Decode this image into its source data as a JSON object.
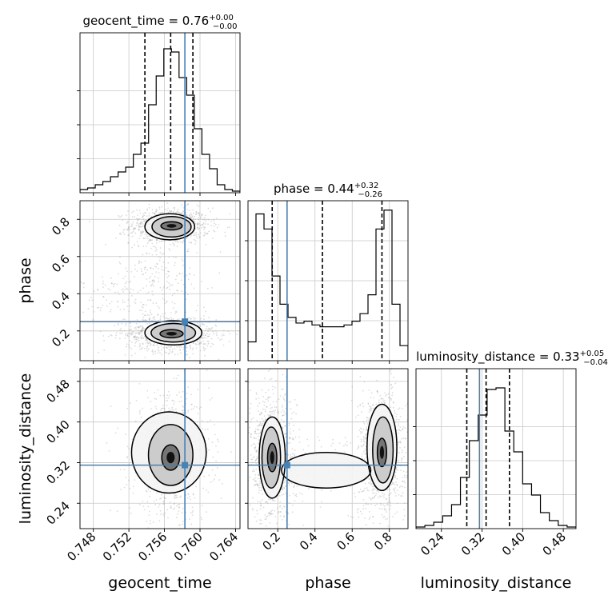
{
  "chart_data": {
    "type": "corner",
    "colors": {
      "truth": "#4682b4",
      "hist": "#000000",
      "quantile": "#000000",
      "grid": "#c8c8c8",
      "scatter": "#9a9a9a"
    },
    "parameters": [
      {
        "name": "geocent_time",
        "label": "geocent_time",
        "title_prefix": "geocent_time = 0.76",
        "title_upper": "+0.00",
        "title_lower": "−0.00",
        "range": [
          0.7465,
          0.7645
        ],
        "ticks": [
          0.748,
          0.752,
          0.756,
          0.76,
          0.764
        ],
        "tick_labels": [
          "0.748",
          "0.752",
          "0.756",
          "0.760",
          "0.764"
        ],
        "truth": 0.7583,
        "quantiles": [
          0.7538,
          0.7567,
          0.7592
        ],
        "hist": [
          0.02,
          0.03,
          0.05,
          0.07,
          0.1,
          0.13,
          0.16,
          0.24,
          0.31,
          0.55,
          0.73,
          0.9,
          0.88,
          0.72,
          0.61,
          0.4,
          0.24,
          0.15,
          0.05,
          0.02,
          0.01
        ],
        "hist_ylim": [
          0,
          1.0
        ]
      },
      {
        "name": "phase",
        "label": "phase",
        "title_prefix": "phase = 0.44",
        "title_upper": "+0.32",
        "title_lower": "−0.26",
        "range": [
          0.04,
          0.9
        ],
        "ticks": [
          0.2,
          0.4,
          0.6,
          0.8
        ],
        "tick_labels": [
          "0.2",
          "0.4",
          "0.6",
          "0.8"
        ],
        "truth": 0.25,
        "quantiles": [
          0.17,
          0.44,
          0.76
        ],
        "hist": [
          0.1,
          0.78,
          0.7,
          0.45,
          0.3,
          0.23,
          0.2,
          0.21,
          0.19,
          0.18,
          0.18,
          0.18,
          0.19,
          0.21,
          0.25,
          0.35,
          0.7,
          0.8,
          0.3,
          0.08
        ],
        "hist_ylim": [
          0,
          0.85
        ]
      },
      {
        "name": "luminosity_distance",
        "label": "luminosity_distance",
        "title_prefix": "luminosity_distance = 0.33",
        "title_upper": "+0.05",
        "title_lower": "−0.04",
        "range": [
          0.19,
          0.505
        ],
        "ticks": [
          0.24,
          0.32,
          0.4,
          0.48
        ],
        "tick_labels": [
          "0.24",
          "0.32",
          "0.40",
          "0.48"
        ],
        "truth": 0.315,
        "quantiles": [
          0.29,
          0.328,
          0.374
        ],
        "hist": [
          0.01,
          0.02,
          0.04,
          0.08,
          0.15,
          0.32,
          0.55,
          0.71,
          0.87,
          0.88,
          0.61,
          0.48,
          0.28,
          0.21,
          0.1,
          0.05,
          0.02,
          0.01
        ],
        "hist_ylim": [
          0,
          1.0
        ]
      }
    ],
    "pairs": [
      {
        "x": "geocent_time",
        "y": "phase",
        "truth": [
          0.7583,
          0.25
        ],
        "blobs": [
          {
            "cx": 0.7566,
            "cy": 0.765,
            "sx": 0.0014,
            "sy": 0.03,
            "w": 1.0
          },
          {
            "cx": 0.7568,
            "cy": 0.185,
            "sx": 0.0016,
            "sy": 0.03,
            "w": 1.05
          },
          {
            "cx": 0.753,
            "cy": 0.4,
            "sx": 0.002,
            "sy": 0.06,
            "w": 0.18
          },
          {
            "cx": 0.7552,
            "cy": 0.55,
            "sx": 0.0016,
            "sy": 0.08,
            "w": 0.15
          }
        ],
        "contours": [
          {
            "level": 0.39,
            "rings": [
              {
                "cx": 0.7568,
                "cy": 0.765,
                "rx": 0.0012,
                "ry": 0.022
              },
              {
                "cx": 0.7568,
                "cy": 0.185,
                "rx": 0.0013,
                "ry": 0.022
              }
            ]
          },
          {
            "level": 0.86,
            "rings": [
              {
                "cx": 0.7568,
                "cy": 0.76,
                "rx": 0.0022,
                "ry": 0.055
              },
              {
                "cx": 0.757,
                "cy": 0.19,
                "rx": 0.0025,
                "ry": 0.05
              }
            ]
          },
          {
            "level": 0.99,
            "rings": [
              {
                "cx": 0.7566,
                "cy": 0.76,
                "rx": 0.0028,
                "ry": 0.07
              },
              {
                "cx": 0.757,
                "cy": 0.19,
                "rx": 0.0032,
                "ry": 0.065
              }
            ]
          }
        ]
      },
      {
        "x": "geocent_time",
        "y": "luminosity_distance",
        "truth": [
          0.7583,
          0.315
        ],
        "blobs": [
          {
            "cx": 0.7567,
            "cy": 0.33,
            "sx": 0.0014,
            "sy": 0.038,
            "w": 1.0
          }
        ],
        "contours": [
          {
            "level": 0.39,
            "rings": [
              {
                "cx": 0.7567,
                "cy": 0.33,
                "rx": 0.001,
                "ry": 0.025
              }
            ]
          },
          {
            "level": 0.86,
            "rings": [
              {
                "cx": 0.7567,
                "cy": 0.335,
                "rx": 0.0025,
                "ry": 0.06
              }
            ]
          },
          {
            "level": 0.99,
            "rings": [
              {
                "cx": 0.7565,
                "cy": 0.34,
                "rx": 0.0042,
                "ry": 0.08
              }
            ]
          }
        ]
      },
      {
        "x": "phase",
        "y": "luminosity_distance",
        "truth": [
          0.25,
          0.315
        ],
        "blobs": [
          {
            "cx": 0.17,
            "cy": 0.33,
            "sx": 0.04,
            "sy": 0.04,
            "w": 1.0
          },
          {
            "cx": 0.76,
            "cy": 0.34,
            "sx": 0.04,
            "sy": 0.04,
            "w": 1.0
          },
          {
            "cx": 0.46,
            "cy": 0.31,
            "sx": 0.14,
            "sy": 0.025,
            "w": 0.15
          }
        ],
        "contours": [
          {
            "level": 0.39,
            "rings": [
              {
                "cx": 0.17,
                "cy": 0.33,
                "rx": 0.025,
                "ry": 0.028
              },
              {
                "cx": 0.76,
                "cy": 0.34,
                "rx": 0.025,
                "ry": 0.028
              }
            ]
          },
          {
            "level": 0.86,
            "rings": [
              {
                "cx": 0.165,
                "cy": 0.33,
                "rx": 0.05,
                "ry": 0.06
              },
              {
                "cx": 0.765,
                "cy": 0.345,
                "rx": 0.055,
                "ry": 0.065
              }
            ]
          },
          {
            "level": 0.99,
            "rings": [
              {
                "cx": 0.17,
                "cy": 0.33,
                "rx": 0.07,
                "ry": 0.08
              },
              {
                "cx": 0.76,
                "cy": 0.35,
                "rx": 0.08,
                "ry": 0.085
              },
              {
                "cx": 0.46,
                "cy": 0.305,
                "rx": 0.24,
                "ry": 0.035
              }
            ]
          }
        ]
      }
    ]
  }
}
